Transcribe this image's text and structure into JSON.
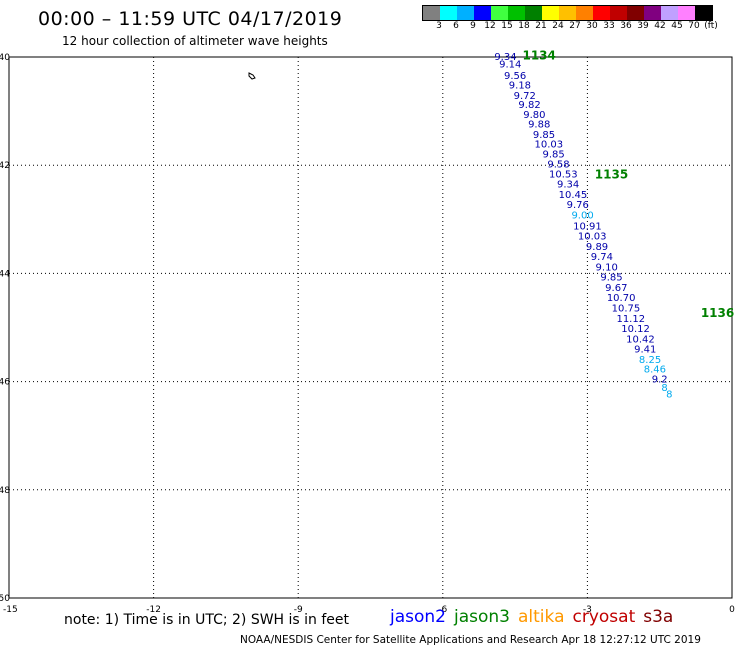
{
  "title": "00:00 – 11:59 UTC 04/17/2019",
  "subtitle": "12 hour collection of altimeter wave heights",
  "legend": {
    "colors": [
      "#808080",
      "#00ffff",
      "#00b0ff",
      "#0000ff",
      "#40ff40",
      "#00c000",
      "#008000",
      "#ffff00",
      "#ffc000",
      "#ff8000",
      "#ff0000",
      "#c00000",
      "#800000",
      "#800080",
      "#c0a0ff",
      "#ff80ff",
      "#000000"
    ],
    "labels": [
      "3",
      "6",
      "9",
      "12",
      "15",
      "18",
      "21",
      "24",
      "27",
      "30",
      "33",
      "36",
      "39",
      "42",
      "45",
      "70",
      "(ft)"
    ]
  },
  "axes": {
    "lon_ticks": [
      "-15",
      "-12",
      "-9",
      "-6",
      "-3",
      "0"
    ],
    "lat_ticks": [
      "-40",
      "-42",
      "-44",
      "-46",
      "-48",
      "-50"
    ]
  },
  "note": "note: 1) Time is in UTC; 2) SWH is in feet",
  "satellites": [
    {
      "name": "jason2",
      "color": "#0000ff"
    },
    {
      "name": "jason3",
      "color": "#008000"
    },
    {
      "name": "altika",
      "color": "#ff9900"
    },
    {
      "name": "cryosat",
      "color": "#c00000"
    },
    {
      "name": "s3a",
      "color": "#800000"
    }
  ],
  "credit": "NOAA/NESDIS Center for Satellite Applications and Research    Apr 18 12:27:12 UTC 2019",
  "pass_labels": [
    "1134",
    "1135",
    "1136"
  ],
  "observations": [
    {
      "v": "9.34",
      "lon": -4.7,
      "lat": -39.98,
      "c": "#0000aa"
    },
    {
      "v": "9.14",
      "lon": -4.6,
      "lat": -40.12,
      "c": "#0000aa"
    },
    {
      "v": "9.56",
      "lon": -4.5,
      "lat": -40.33,
      "c": "#0000aa"
    },
    {
      "v": "9.18",
      "lon": -4.4,
      "lat": -40.51,
      "c": "#0000aa"
    },
    {
      "v": "9.72",
      "lon": -4.3,
      "lat": -40.7,
      "c": "#0000aa"
    },
    {
      "v": "9.82",
      "lon": -4.2,
      "lat": -40.87,
      "c": "#0000aa"
    },
    {
      "v": "9.80",
      "lon": -4.1,
      "lat": -41.05,
      "c": "#0000aa"
    },
    {
      "v": "9.88",
      "lon": -4.0,
      "lat": -41.23,
      "c": "#0000aa"
    },
    {
      "v": "9.85",
      "lon": -3.9,
      "lat": -41.42,
      "c": "#0000aa"
    },
    {
      "v": "10.03",
      "lon": -3.8,
      "lat": -41.6,
      "c": "#0000aa"
    },
    {
      "v": "9.85",
      "lon": -3.7,
      "lat": -41.78,
      "c": "#0000aa"
    },
    {
      "v": "9.58",
      "lon": -3.6,
      "lat": -41.97,
      "c": "#0000aa"
    },
    {
      "v": "10.53",
      "lon": -3.5,
      "lat": -42.15,
      "c": "#0000aa"
    },
    {
      "v": "9.34",
      "lon": -3.4,
      "lat": -42.34,
      "c": "#0000aa"
    },
    {
      "v": "10.45",
      "lon": -3.3,
      "lat": -42.53,
      "c": "#0000aa"
    },
    {
      "v": "9.76",
      "lon": -3.2,
      "lat": -42.72,
      "c": "#0000aa"
    },
    {
      "v": "9.00",
      "lon": -3.1,
      "lat": -42.91,
      "c": "#00aaee"
    },
    {
      "v": "10.91",
      "lon": -3.0,
      "lat": -43.11,
      "c": "#0000aa"
    },
    {
      "v": "10.03",
      "lon": -2.9,
      "lat": -43.3,
      "c": "#0000aa"
    },
    {
      "v": "9.89",
      "lon": -2.8,
      "lat": -43.49,
      "c": "#0000aa"
    },
    {
      "v": "9.74",
      "lon": -2.7,
      "lat": -43.68,
      "c": "#0000aa"
    },
    {
      "v": "9.10",
      "lon": -2.6,
      "lat": -43.87,
      "c": "#0000aa"
    },
    {
      "v": "9.85",
      "lon": -2.5,
      "lat": -44.06,
      "c": "#0000aa"
    },
    {
      "v": "9.67",
      "lon": -2.4,
      "lat": -44.25,
      "c": "#0000aa"
    },
    {
      "v": "10.70",
      "lon": -2.3,
      "lat": -44.44,
      "c": "#0000aa"
    },
    {
      "v": "10.75",
      "lon": -2.2,
      "lat": -44.63,
      "c": "#0000aa"
    },
    {
      "v": "11.12",
      "lon": -2.1,
      "lat": -44.82,
      "c": "#0000aa"
    },
    {
      "v": "10.12",
      "lon": -2.0,
      "lat": -45.01,
      "c": "#0000aa"
    },
    {
      "v": "10.42",
      "lon": -1.9,
      "lat": -45.2,
      "c": "#0000aa"
    },
    {
      "v": "9.41",
      "lon": -1.8,
      "lat": -45.39,
      "c": "#0000aa"
    },
    {
      "v": "8.25",
      "lon": -1.7,
      "lat": -45.58,
      "c": "#00aaee"
    },
    {
      "v": "8.46",
      "lon": -1.6,
      "lat": -45.76,
      "c": "#00aaee"
    },
    {
      "v": "9.2",
      "lon": -1.5,
      "lat": -45.94,
      "c": "#0000aa"
    },
    {
      "v": "8",
      "lon": -1.4,
      "lat": -46.1,
      "c": "#00aaee"
    },
    {
      "v": "8",
      "lon": -1.3,
      "lat": -46.22,
      "c": "#00aaee"
    }
  ]
}
